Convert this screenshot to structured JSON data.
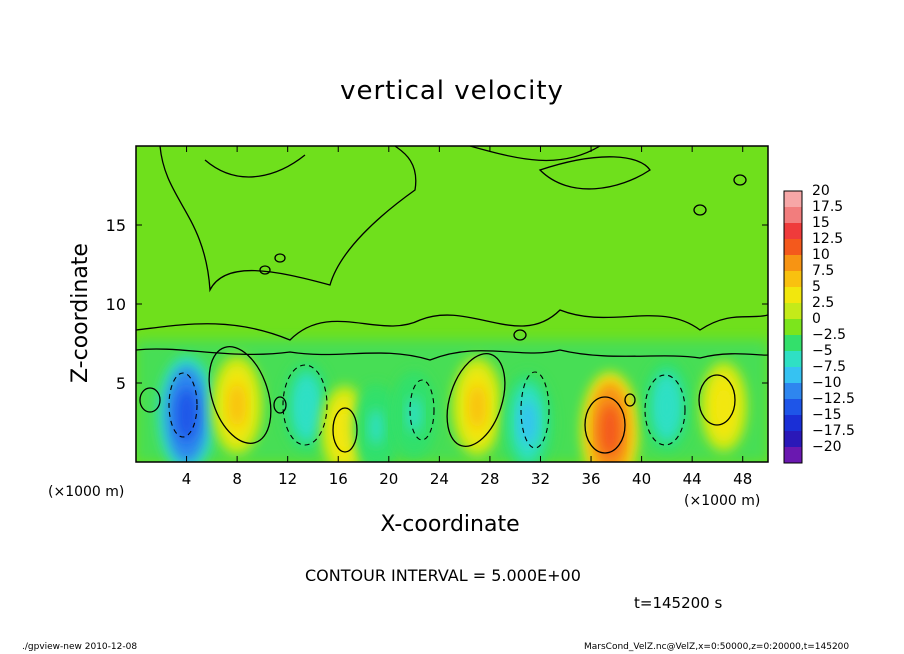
{
  "chart_data": {
    "type": "heatmap",
    "title": "vertical velocity",
    "xlabel": "X-coordinate",
    "ylabel": "Z-coordinate",
    "x_unit": "(×1000 m)",
    "xlim": [
      0,
      50
    ],
    "ylim": [
      0,
      20
    ],
    "x_ticks": [
      "4",
      "8",
      "12",
      "16",
      "20",
      "24",
      "28",
      "32",
      "36",
      "40",
      "44",
      "48"
    ],
    "y_ticks": [
      "5",
      "10",
      "15"
    ],
    "colorbar": {
      "levels": [
        "20",
        "17.5",
        "15",
        "12.5",
        "10",
        "7.5",
        "5",
        "2.5",
        "0",
        "−2.5",
        "−5",
        "−7.5",
        "−10",
        "−12.5",
        "−15",
        "−17.5",
        "−20"
      ],
      "colors": [
        "#f7a7a7",
        "#f27d7d",
        "#ef3b3b",
        "#f4591c",
        "#f79413",
        "#f9c10f",
        "#f2e70d",
        "#c4ea19",
        "#7ce51c",
        "#33e06b",
        "#2fe0c4",
        "#36c2f2",
        "#2e86ef",
        "#1e55e8",
        "#1a2fd6",
        "#2a18b8",
        "#6a18b0"
      ]
    },
    "features": [
      {
        "x": 4,
        "z": 3,
        "w": -12,
        "kind": "downdraft"
      },
      {
        "x": 8,
        "z": 3.6,
        "w": 8,
        "kind": "updraft"
      },
      {
        "x": 13.5,
        "z": 3.5,
        "w": -6,
        "kind": "downdraft"
      },
      {
        "x": 16.5,
        "z": 2,
        "w": 6,
        "kind": "updraft"
      },
      {
        "x": 19,
        "z": 2.2,
        "w": -5,
        "kind": "downdraft"
      },
      {
        "x": 22,
        "z": 3,
        "w": -5,
        "kind": "downdraft"
      },
      {
        "x": 27,
        "z": 3.5,
        "w": 8,
        "kind": "updraft"
      },
      {
        "x": 31,
        "z": 2.5,
        "w": -8,
        "kind": "downdraft"
      },
      {
        "x": 37.5,
        "z": 2,
        "w": 12,
        "kind": "updraft"
      },
      {
        "x": 42,
        "z": 3.5,
        "w": -6,
        "kind": "downdraft"
      },
      {
        "x": 46.5,
        "z": 3.5,
        "w": 6,
        "kind": "updraft"
      }
    ]
  },
  "contour_info": "CONTOUR INTERVAL = 5.000E+00",
  "time_label": "t=145200 s",
  "footer_left": "./gpview-new  2010-12-08",
  "footer_right": "MarsCond_VelZ.nc@VelZ,x=0:50000,z=0:20000,t=145200"
}
